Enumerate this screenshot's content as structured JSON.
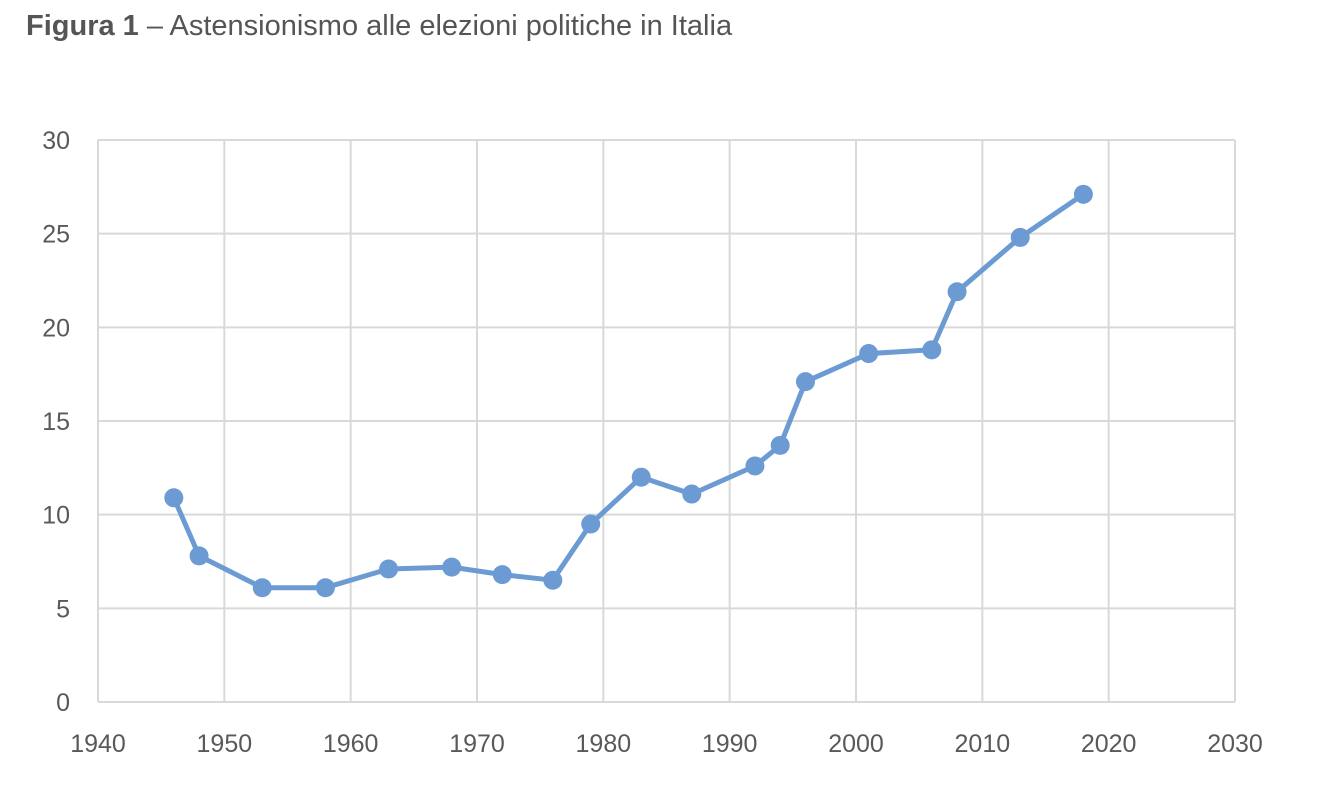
{
  "figure": {
    "label": "Figura 1",
    "separator": "–",
    "caption": "Astensionismo alle elezioni politiche in Italia"
  },
  "colors": {
    "series": "#6b9bd2",
    "grid": "#d9d9d9",
    "tick_text": "#595959"
  },
  "chart_data": {
    "type": "line",
    "title": "Figura 1 – Astensionismo alle elezioni politiche in Italia",
    "xlabel": "",
    "ylabel": "",
    "xlim": [
      1940,
      2030
    ],
    "ylim": [
      0,
      30
    ],
    "xticks": [
      1940,
      1950,
      1960,
      1970,
      1980,
      1990,
      2000,
      2010,
      2020,
      2030
    ],
    "yticks": [
      0,
      5,
      10,
      15,
      20,
      25,
      30
    ],
    "grid": true,
    "legend": "none",
    "series": [
      {
        "x": [
          1946,
          1948,
          1953,
          1958,
          1963,
          1968,
          1972,
          1976,
          1979,
          1983,
          1987,
          1992,
          1994,
          1996,
          2001,
          2006,
          2008,
          2013,
          2018
        ],
        "y": [
          10.9,
          7.8,
          6.1,
          6.1,
          7.1,
          7.2,
          6.8,
          6.5,
          9.5,
          12.0,
          11.1,
          12.6,
          13.7,
          17.1,
          18.6,
          18.8,
          21.9,
          24.8,
          27.1
        ]
      }
    ]
  }
}
